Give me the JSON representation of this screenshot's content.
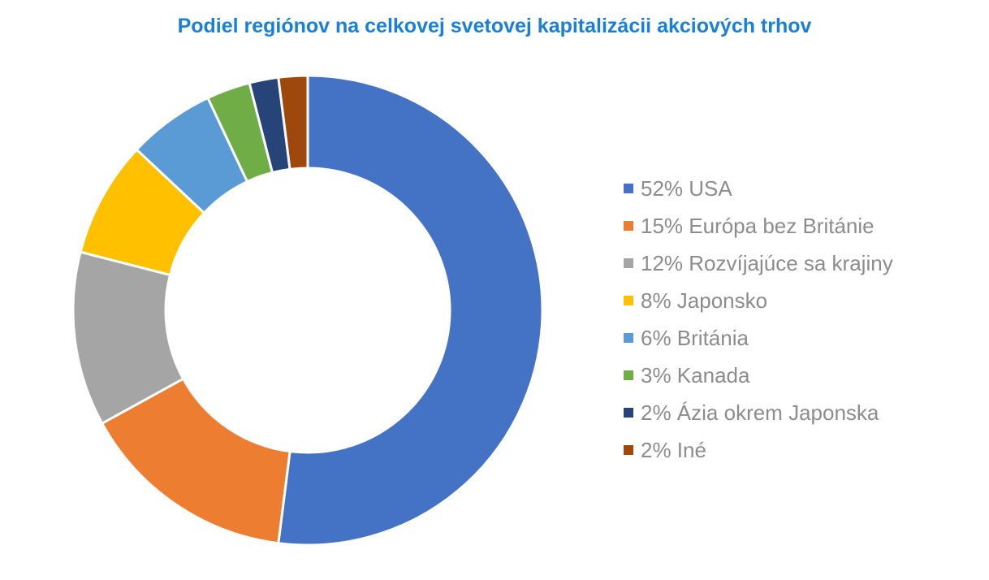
{
  "chart_data": {
    "type": "pie",
    "variant": "donut",
    "title": "Podiel regiónov na celkovej svetovej kapitalizácii akciových trhov",
    "title_color": "#1a7fd6",
    "legend_position": "right",
    "slices": [
      {
        "label": "52% USA",
        "value": 52,
        "color": "#4472c4"
      },
      {
        "label": "15% Európa bez Británie",
        "value": 15,
        "color": "#ed7d31"
      },
      {
        "label": "12% Rozvíjajúce sa krajiny",
        "value": 12,
        "color": "#a5a5a5"
      },
      {
        "label": "8% Japonsko",
        "value": 8,
        "color": "#ffc000"
      },
      {
        "label": "6% Británia",
        "value": 6,
        "color": "#5b9bd5"
      },
      {
        "label": "3% Kanada",
        "value": 3,
        "color": "#70ad47"
      },
      {
        "label": "2% Ázia okrem Japonska",
        "value": 2,
        "color": "#264478"
      },
      {
        "label": "2% Iné",
        "value": 2,
        "color": "#9e480e"
      }
    ]
  }
}
